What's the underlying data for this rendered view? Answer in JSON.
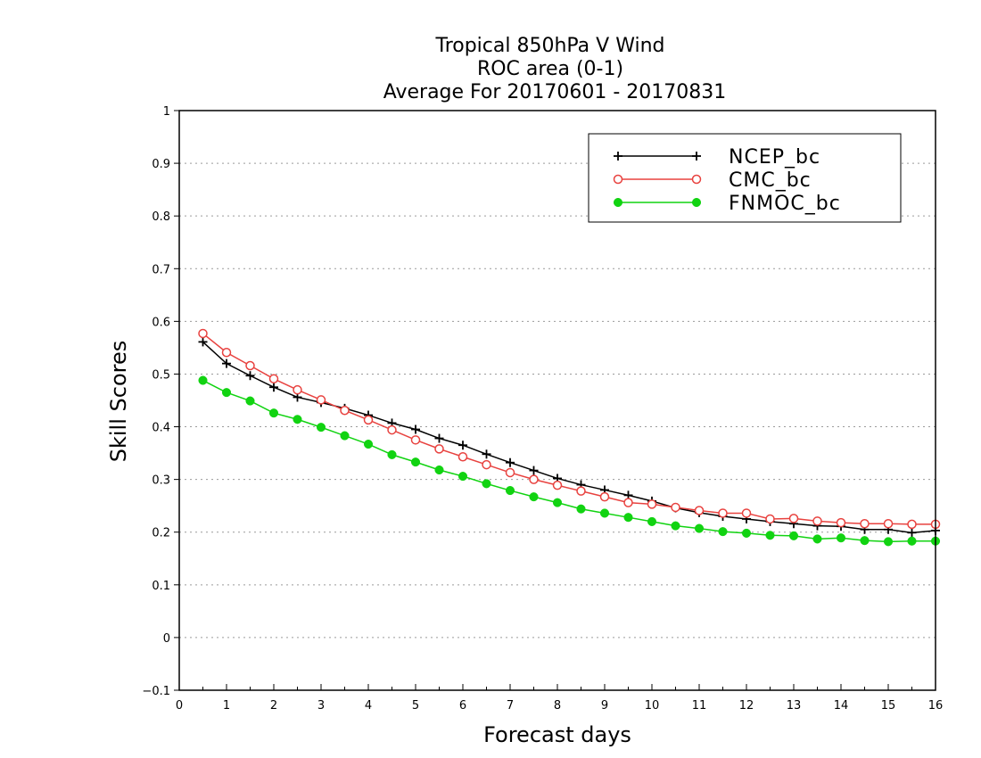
{
  "chart_data": {
    "type": "line",
    "title": "Tropical 850hPa V Wind",
    "subtitle_lines": [
      "ROC area (0-1)",
      "Average For 20170601 - 20170831"
    ],
    "xlabel": "Forecast days",
    "ylabel": "Skill Scores",
    "xlim": [
      0,
      16
    ],
    "ylim": [
      -0.1,
      1
    ],
    "x_ticks": [
      "0",
      "1",
      "2",
      "3",
      "4",
      "5",
      "6",
      "7",
      "8",
      "9",
      "10",
      "11",
      "12",
      "13",
      "14",
      "15",
      "16"
    ],
    "y_ticks": [
      "−0.1",
      "0",
      "0.1",
      "0.2",
      "0.3",
      "0.4",
      "0.5",
      "0.6",
      "0.7",
      "0.8",
      "0.9",
      "1"
    ],
    "y_tick_values": [
      -0.1,
      0,
      0.1,
      0.2,
      0.3,
      0.4,
      0.5,
      0.6,
      0.7,
      0.8,
      0.9,
      1
    ],
    "grid": "horizontal dotted",
    "legend_position": "top-right",
    "x": [
      0.5,
      1,
      1.5,
      2,
      2.5,
      3,
      3.5,
      4,
      4.5,
      5,
      5.5,
      6,
      6.5,
      7,
      7.5,
      8,
      8.5,
      9,
      9.5,
      10,
      10.5,
      11,
      11.5,
      12,
      12.5,
      13,
      13.5,
      14,
      14.5,
      15,
      15.5,
      16
    ],
    "series": [
      {
        "name": "NCEP_bc",
        "color": "#000000",
        "marker": "plus",
        "values": [
          0.561,
          0.52,
          0.497,
          0.475,
          0.456,
          0.446,
          0.435,
          0.422,
          0.407,
          0.395,
          0.378,
          0.365,
          0.348,
          0.332,
          0.317,
          0.302,
          0.29,
          0.28,
          0.27,
          0.259,
          0.246,
          0.237,
          0.23,
          0.225,
          0.22,
          0.216,
          0.212,
          0.211,
          0.205,
          0.205,
          0.199,
          0.203
        ]
      },
      {
        "name": "CMC_bc",
        "color": "#e8423f",
        "marker": "open-circle",
        "values": [
          0.577,
          0.541,
          0.516,
          0.491,
          0.47,
          0.451,
          0.431,
          0.413,
          0.394,
          0.375,
          0.358,
          0.343,
          0.328,
          0.313,
          0.3,
          0.289,
          0.278,
          0.267,
          0.256,
          0.253,
          0.247,
          0.241,
          0.236,
          0.236,
          0.225,
          0.226,
          0.221,
          0.218,
          0.216,
          0.216,
          0.215,
          0.215
        ]
      },
      {
        "name": "FNMOC_bc",
        "color": "#11d311",
        "marker": "filled-circle",
        "values": [
          0.488,
          0.465,
          0.449,
          0.426,
          0.414,
          0.399,
          0.383,
          0.367,
          0.347,
          0.333,
          0.318,
          0.306,
          0.292,
          0.279,
          0.267,
          0.256,
          0.244,
          0.236,
          0.228,
          0.22,
          0.212,
          0.207,
          0.201,
          0.198,
          0.194,
          0.193,
          0.187,
          0.189,
          0.184,
          0.182,
          0.183,
          0.183
        ]
      }
    ]
  }
}
